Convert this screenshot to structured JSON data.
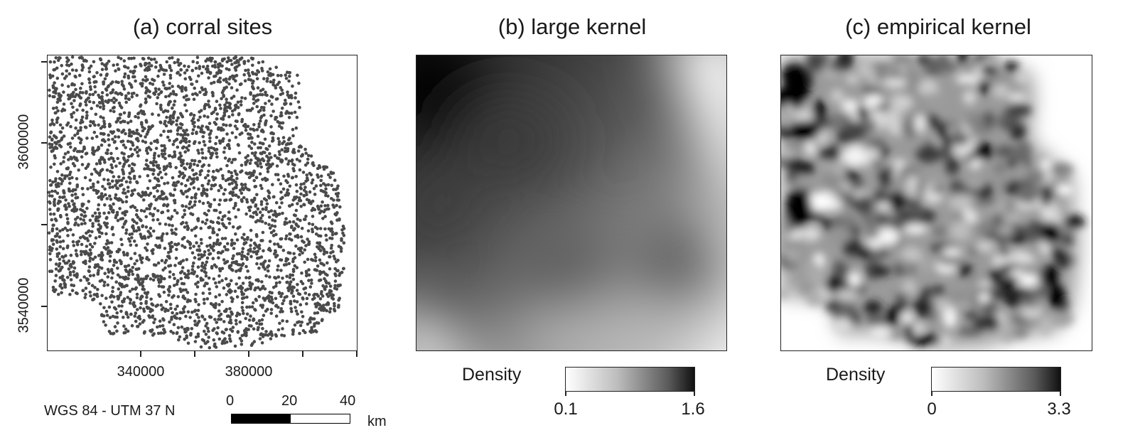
{
  "panels": {
    "a": {
      "title": "(a) corral sites"
    },
    "b": {
      "title": "(b) large kernel"
    },
    "c": {
      "title": "(c) empirical kernel"
    }
  },
  "axes": {
    "y_labels": [
      "3600000",
      "3540000"
    ],
    "x_labels": [
      "340000",
      "380000"
    ]
  },
  "projection": "WGS 84 - UTM 37 N",
  "scalebar": {
    "labels": [
      "0",
      "20",
      "40"
    ],
    "unit": "km"
  },
  "legend_b": {
    "title": "Density",
    "min": "0.1",
    "max": "1.6"
  },
  "legend_c": {
    "title": "Density",
    "min": "0",
    "max": "3.3"
  },
  "colors": {
    "points": "#4a4a4a",
    "frame": "#222222",
    "dark": "#000000",
    "light": "#ffffff"
  }
}
